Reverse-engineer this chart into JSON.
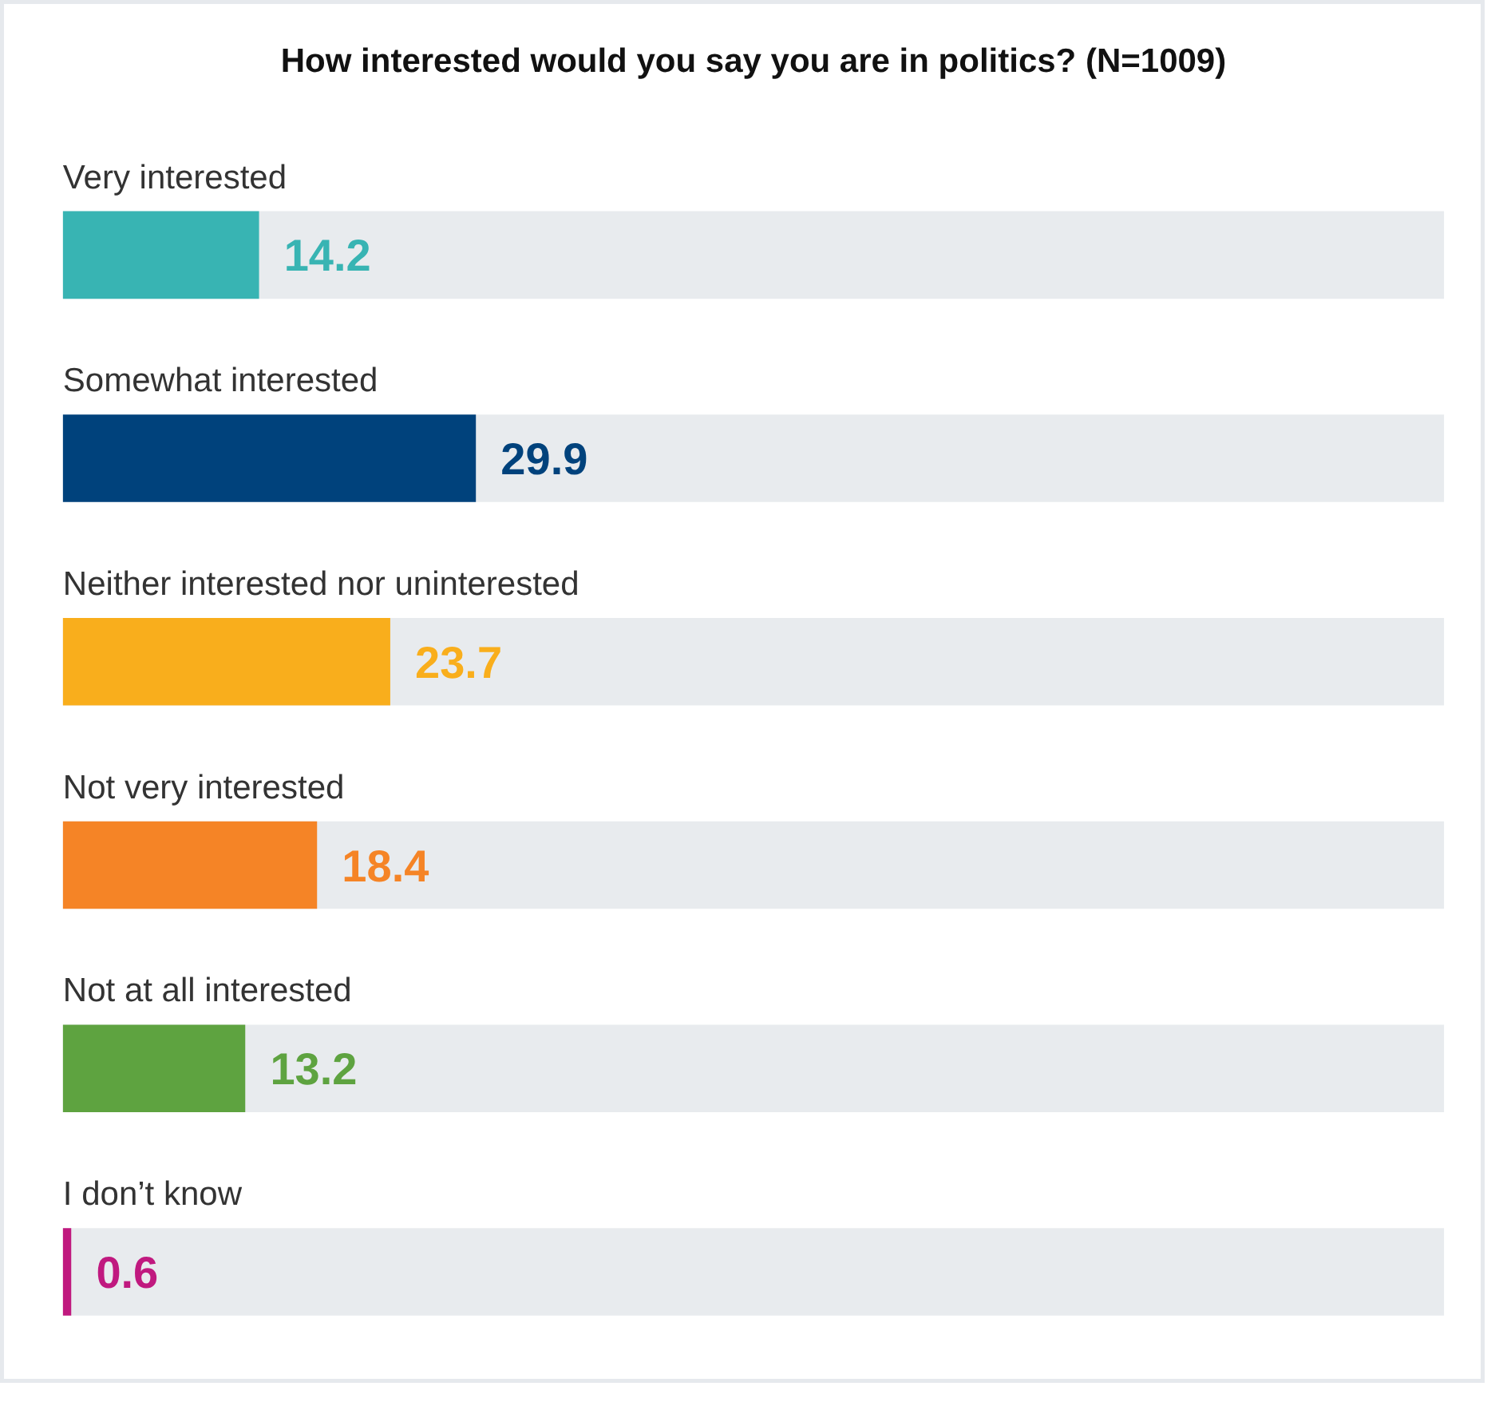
{
  "chart_data": {
    "type": "bar",
    "orientation": "horizontal",
    "title": "How interested would you say you are in politics? (N=1009)",
    "categories": [
      "Very interested",
      "Somewhat interested",
      "Neither interested nor uninterested",
      "Not very interested",
      "Not at all interested",
      "I don’t know"
    ],
    "values": [
      14.2,
      29.9,
      23.7,
      18.4,
      13.2,
      0.6
    ],
    "colors": [
      "#38b4b3",
      "#00427c",
      "#f9ae1c",
      "#f58426",
      "#5ea340",
      "#c0197f"
    ],
    "xlim": [
      0,
      100
    ],
    "tick_labels": false,
    "data_labels": true
  }
}
